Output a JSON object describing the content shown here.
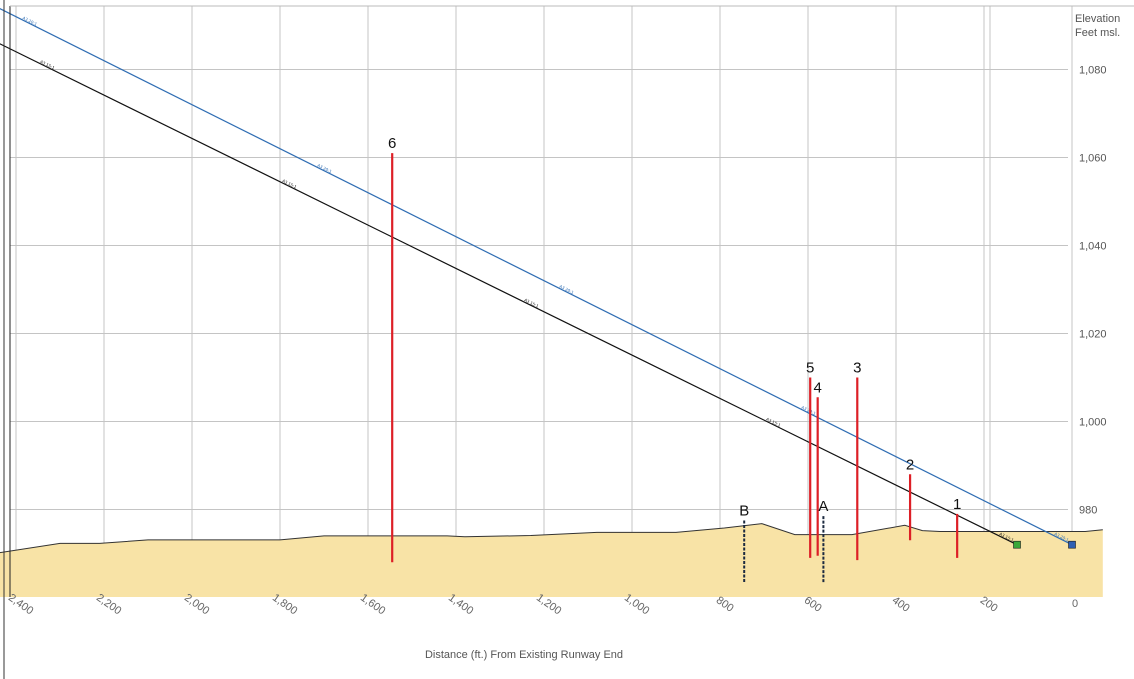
{
  "chart_data": {
    "type": "line",
    "title": "",
    "xlabel": "Distance (ft.) From Existing Runway End",
    "ylabel_lines": [
      "Elevation",
      "Feet msl."
    ],
    "x_reversed": true,
    "xlim": [
      -70,
      2450
    ],
    "ylim": [
      965,
      1090
    ],
    "x_ticks": [
      {
        "value": 2400,
        "label": "2,400"
      },
      {
        "value": 2200,
        "label": "2,200"
      },
      {
        "value": 2000,
        "label": "2,000"
      },
      {
        "value": 1800,
        "label": "1,800"
      },
      {
        "value": 1600,
        "label": "1,600"
      },
      {
        "value": 1400,
        "label": "1,400"
      },
      {
        "value": 1200,
        "label": "1,200"
      },
      {
        "value": 1000,
        "label": "1,000"
      },
      {
        "value": 800,
        "label": "800"
      },
      {
        "value": 600,
        "label": "600"
      },
      {
        "value": 400,
        "label": "400"
      },
      {
        "value": 200,
        "label": "200"
      },
      {
        "value": 0,
        "label": "0"
      }
    ],
    "y_ticks": [
      {
        "value": 980,
        "label": "980"
      },
      {
        "value": 1000,
        "label": "1,000"
      },
      {
        "value": 1020,
        "label": "1,020"
      },
      {
        "value": 1040,
        "label": "1,040"
      },
      {
        "value": 1060,
        "label": "1,060"
      },
      {
        "value": 1080,
        "label": "1,080"
      }
    ],
    "grid": true,
    "series": [
      {
        "name": "A3 20:1",
        "color": "#2f6db3",
        "points": [
          {
            "x": 0,
            "y": 972
          },
          {
            "x": 2440,
            "y": 1094
          }
        ],
        "label_positions": [
          2370,
          1700,
          1150,
          600,
          25
        ]
      },
      {
        "name": "A3 15:1",
        "color": "#111111",
        "points": [
          {
            "x": 125,
            "y": 972
          },
          {
            "x": 2440,
            "y": 1086
          }
        ],
        "label_positions": [
          2330,
          1780,
          1230,
          680,
          150
        ]
      }
    ],
    "terrain": {
      "color": "#f8e3a6",
      "outline": "#333333",
      "points": [
        {
          "x": 2450,
          "y": 970
        },
        {
          "x": 2300,
          "y": 972.3
        },
        {
          "x": 2210,
          "y": 972.3
        },
        {
          "x": 2100,
          "y": 973.1
        },
        {
          "x": 1800,
          "y": 973.1
        },
        {
          "x": 1700,
          "y": 974
        },
        {
          "x": 1420,
          "y": 974
        },
        {
          "x": 1380,
          "y": 973.8
        },
        {
          "x": 1230,
          "y": 974.1
        },
        {
          "x": 1080,
          "y": 974.8
        },
        {
          "x": 900,
          "y": 974.8
        },
        {
          "x": 790,
          "y": 975.8
        },
        {
          "x": 705,
          "y": 976.8
        },
        {
          "x": 630,
          "y": 974.3
        },
        {
          "x": 500,
          "y": 974.3
        },
        {
          "x": 380,
          "y": 976.4
        },
        {
          "x": 340,
          "y": 975.2
        },
        {
          "x": 300,
          "y": 975
        },
        {
          "x": 0,
          "y": 975
        },
        {
          "x": -30,
          "y": 975
        },
        {
          "x": -70,
          "y": 975.4
        }
      ]
    },
    "endpoints": [
      {
        "x": 125,
        "y": 972,
        "color": "#3aa83a"
      },
      {
        "x": 0,
        "y": 972,
        "color": "#2f5fb3"
      }
    ],
    "obstructions": [
      {
        "label": "1",
        "x": 261,
        "top": 979,
        "bottom": 969,
        "color": "#dd1f26",
        "style": "solid"
      },
      {
        "label": "2",
        "x": 368,
        "top": 988,
        "bottom": 973,
        "color": "#dd1f26",
        "style": "solid"
      },
      {
        "label": "3",
        "x": 488,
        "top": 1010,
        "bottom": 968.5,
        "color": "#dd1f26",
        "style": "solid"
      },
      {
        "label": "4",
        "x": 578,
        "top": 1005.5,
        "bottom": 969.5,
        "color": "#dd1f26",
        "style": "solid"
      },
      {
        "label": "5",
        "x": 595,
        "top": 1010,
        "bottom": 969,
        "color": "#dd1f26",
        "style": "solid"
      },
      {
        "label": "6",
        "x": 1545,
        "top": 1061,
        "bottom": 968,
        "color": "#dd1f26",
        "style": "solid"
      },
      {
        "label": "A",
        "x": 565,
        "top": 978.5,
        "bottom": 963.5,
        "color": "#1c2a40",
        "style": "dashed"
      },
      {
        "label": "B",
        "x": 745,
        "top": 977.5,
        "bottom": 963.5,
        "color": "#1c2a40",
        "style": "dashed"
      }
    ]
  }
}
